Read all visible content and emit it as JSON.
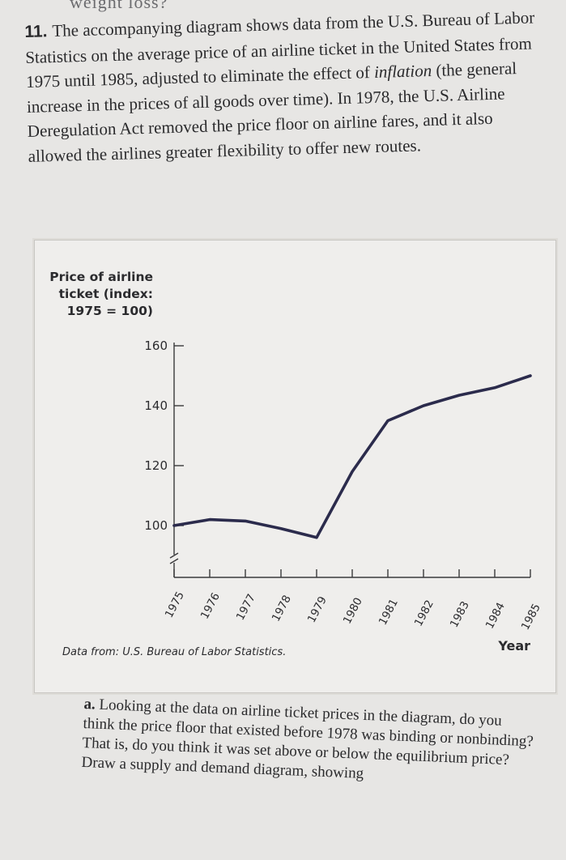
{
  "cut_text": "weight loss?",
  "problem": {
    "number": "11.",
    "text_before_italic": "The accompanying diagram shows data from the U.S. Bureau of Labor Statistics on the average price of an airline ticket in the United States from 1975 until 1985, adjusted to eliminate the effect of ",
    "italic": "inflation",
    "text_after_italic": " (the general increase in the prices of all goods over time). In 1978, the U.S. Airline Deregulation Act removed the price floor on airline fares, and it also allowed the airlines greater flexibility to offer new routes."
  },
  "chart_data": {
    "type": "line",
    "ylabel_lines": [
      "Price of airline",
      "ticket (index:",
      "1975 = 100)"
    ],
    "xlabel": "Year",
    "source": "Data from: U.S. Bureau of Labor Statistics.",
    "x": [
      "1975",
      "1976",
      "1977",
      "1978",
      "1979",
      "1980",
      "1981",
      "1982",
      "1983",
      "1984",
      "1985"
    ],
    "y": [
      100,
      102,
      101.5,
      99,
      96,
      118,
      135,
      140,
      143.5,
      146,
      150
    ],
    "yticks": [
      100,
      120,
      140,
      160
    ],
    "ylim": [
      90,
      160
    ],
    "axis_break": true,
    "grid": false,
    "line_color": "#2b2b4c"
  },
  "part_a": {
    "label": "a.",
    "text": "Looking at the data on airline ticket prices in the diagram, do you think the price floor that existed before 1978 was binding or nonbinding? That is, do you think it was set above or below the equilibrium price? Draw a supply and demand diagram, showing"
  }
}
